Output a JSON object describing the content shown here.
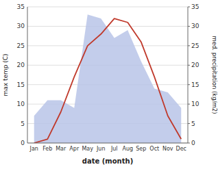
{
  "chart_data": {
    "type": "line",
    "xlabel": "date (month)",
    "ylabel": "max temp (C)",
    "y2label": "med. precipitation (kg/m2)",
    "categories": [
      "Jan",
      "Feb",
      "Mar",
      "Apr",
      "May",
      "Jun",
      "Jul",
      "Aug",
      "Sep",
      "Oct",
      "Nov",
      "Dec"
    ],
    "series": [
      {
        "type": "area",
        "axis": "y2",
        "color": "#b8c4e8",
        "values": [
          7,
          11,
          11,
          9,
          33,
          32,
          27,
          29,
          21,
          14,
          13,
          9
        ]
      },
      {
        "type": "line",
        "color": "#c0392b",
        "values": [
          0,
          1,
          8,
          17,
          25,
          28,
          32,
          31,
          26,
          17,
          7,
          1
        ]
      }
    ],
    "ylim": [
      0,
      35
    ],
    "yticks": [
      0,
      5,
      10,
      15,
      20,
      25,
      30,
      35
    ],
    "y2lim": [
      0,
      35
    ],
    "y2ticks": [
      0,
      5,
      10,
      15,
      20,
      25,
      30,
      35
    ],
    "grid": true
  }
}
